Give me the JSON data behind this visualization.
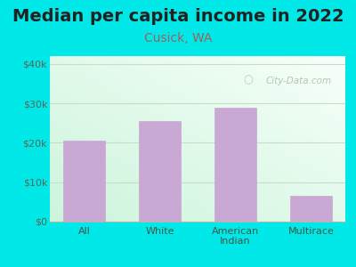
{
  "title": "Median per capita income in 2022",
  "subtitle": "Cusick, WA",
  "categories": [
    "All",
    "White",
    "American\nIndian",
    "Multirace"
  ],
  "values": [
    20500,
    25500,
    29000,
    6500
  ],
  "bar_color": "#c9a8d4",
  "bar_edge_color": "#c9a8d4",
  "title_fontsize": 14,
  "subtitle_fontsize": 10,
  "subtitle_color": "#a06060",
  "title_color": "#222222",
  "background_outer": "#00e8e8",
  "background_inner_top_left": "#d8f0e4",
  "background_inner_top_right": "#f0f8f8",
  "background_inner_bottom": "#e8f8ee",
  "ylim": [
    0,
    42000
  ],
  "yticks": [
    0,
    10000,
    20000,
    30000,
    40000
  ],
  "ytick_labels": [
    "$0",
    "$10k",
    "$20k",
    "$30k",
    "$40k"
  ],
  "tick_color": "#556655",
  "grid_color": "#c8dcc8",
  "watermark": "City-Data.com",
  "watermark_color": "#aabbaa",
  "xlabel_color": "#445544"
}
